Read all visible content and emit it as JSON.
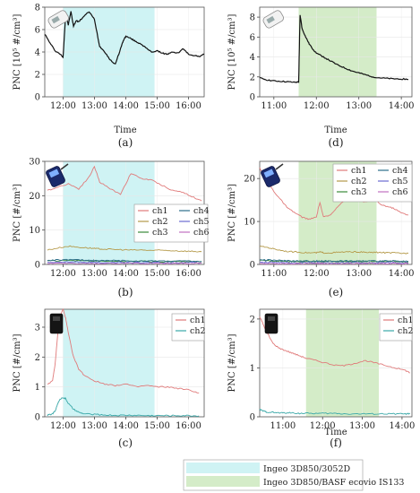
{
  "figure": {
    "legend": {
      "items": [
        {
          "label": "Ingeo 3D850/3052D",
          "color": "#cff3f4"
        },
        {
          "label": "Ingeo 3D850/BASF ecovio IS133",
          "color": "#d4ecc8"
        }
      ]
    }
  },
  "chart_data": [
    {
      "panel": "(a)",
      "type": "line",
      "ylabel": "PNC [10⁵ #/cm³]",
      "xlabel": "Time",
      "ylim": [
        0,
        8
      ],
      "yticks": [
        0,
        2,
        4,
        6,
        8
      ],
      "xlim": [
        "11:25",
        "16:30"
      ],
      "xticks": [
        "12:00",
        "13:00",
        "14:00",
        "15:00",
        "16:00"
      ],
      "shade": {
        "from": "12:00",
        "to": "14:55",
        "color": "#cff3f4"
      },
      "device_icon": "particle-counter-handheld-icon",
      "series": [
        {
          "name": "",
          "color": "#111111",
          "x": [
            "11:25",
            "11:35",
            "11:45",
            "11:55",
            "12:00",
            "12:05",
            "12:10",
            "12:15",
            "12:20",
            "12:25",
            "12:30",
            "12:40",
            "12:50",
            "13:00",
            "13:10",
            "13:20",
            "13:30",
            "13:40",
            "13:50",
            "13:55",
            "14:00",
            "14:10",
            "14:20",
            "14:30",
            "14:40",
            "14:50",
            "15:00",
            "15:10",
            "15:20",
            "15:30",
            "15:40",
            "15:50",
            "16:00",
            "16:10",
            "16:20",
            "16:30"
          ],
          "values": [
            5.6,
            4.8,
            4.1,
            3.8,
            3.5,
            7.5,
            6.4,
            7.6,
            6.3,
            6.8,
            6.7,
            7.2,
            7.6,
            6.9,
            4.5,
            4.0,
            3.3,
            2.9,
            4.3,
            5.0,
            5.4,
            5.2,
            4.9,
            4.7,
            4.3,
            4.0,
            4.1,
            3.9,
            3.8,
            4.0,
            3.9,
            4.3,
            3.8,
            3.7,
            3.6,
            3.8
          ]
        }
      ]
    },
    {
      "panel": "(d)",
      "type": "line",
      "ylabel": "PNC [10⁵ #/cm³]",
      "xlabel": "Time",
      "ylim": [
        0,
        9
      ],
      "yticks": [
        0,
        2,
        4,
        6,
        8
      ],
      "xlim": [
        "10:40",
        "14:15"
      ],
      "xticks": [
        "11:00",
        "12:00",
        "13:00",
        "14:00"
      ],
      "shade": {
        "from": "11:35",
        "to": "13:25",
        "color": "#d4ecc8"
      },
      "device_icon": "particle-counter-handheld-icon",
      "series": [
        {
          "name": "",
          "color": "#111111",
          "x": [
            "10:40",
            "10:50",
            "11:00",
            "11:10",
            "11:20",
            "11:30",
            "11:35",
            "11:37",
            "11:40",
            "11:45",
            "11:50",
            "11:55",
            "12:00",
            "12:10",
            "12:20",
            "12:30",
            "12:40",
            "12:50",
            "13:00",
            "13:10",
            "13:20",
            "13:30",
            "13:40",
            "13:50",
            "14:00",
            "14:10"
          ],
          "values": [
            1.9,
            1.7,
            1.6,
            1.55,
            1.5,
            1.45,
            1.5,
            8.2,
            6.8,
            6.0,
            5.3,
            4.8,
            4.4,
            4.0,
            3.6,
            3.2,
            2.9,
            2.6,
            2.4,
            2.2,
            2.0,
            1.9,
            1.85,
            1.8,
            1.8,
            1.75
          ]
        }
      ]
    },
    {
      "panel": "(b)",
      "type": "line",
      "ylabel": "PNC [#/cm³]",
      "xlabel": "",
      "ylim": [
        0,
        30
      ],
      "yticks": [
        0,
        10,
        20,
        30
      ],
      "xlim": [
        "11:25",
        "16:30"
      ],
      "xticks": [
        "12:00",
        "13:00",
        "14:00",
        "15:00",
        "16:00"
      ],
      "shade": {
        "from": "12:00",
        "to": "14:55",
        "color": "#cff3f4"
      },
      "device_icon": "nanoparticle-monitor-icon",
      "x": [
        "11:30",
        "11:50",
        "12:10",
        "12:30",
        "12:50",
        "13:00",
        "13:10",
        "13:30",
        "13:50",
        "14:10",
        "14:30",
        "14:50",
        "15:10",
        "15:30",
        "15:50",
        "16:10",
        "16:25"
      ],
      "series": [
        {
          "name": "ch1",
          "color": "#e07a7a",
          "values": [
            21.5,
            22.5,
            23.5,
            22.0,
            25.5,
            28.5,
            24.0,
            22.0,
            20.5,
            26.5,
            25.0,
            24.5,
            23.0,
            21.5,
            21.0,
            19.5,
            18.5
          ]
        },
        {
          "name": "ch2",
          "color": "#b59a4a",
          "values": [
            4.2,
            4.8,
            5.3,
            5.0,
            4.8,
            4.6,
            4.5,
            4.4,
            4.3,
            4.2,
            4.2,
            4.1,
            4.1,
            4.0,
            3.9,
            3.8,
            3.7
          ]
        },
        {
          "name": "ch3",
          "color": "#3a8a3a",
          "values": [
            1.0,
            1.1,
            1.2,
            1.1,
            1.0,
            1.0,
            1.0,
            0.9,
            0.9,
            0.9,
            0.9,
            0.8,
            0.8,
            0.8,
            0.8,
            0.8,
            0.8
          ]
        },
        {
          "name": "ch4",
          "color": "#2c6e8a",
          "values": [
            1.2,
            1.3,
            1.4,
            1.3,
            1.2,
            1.2,
            1.1,
            1.1,
            1.1,
            1.0,
            1.0,
            1.0,
            1.0,
            1.0,
            1.0,
            0.9,
            0.9
          ]
        },
        {
          "name": "ch5",
          "color": "#6a6ad0",
          "values": [
            0.6,
            0.6,
            0.7,
            0.7,
            0.6,
            0.6,
            0.6,
            0.6,
            0.6,
            0.5,
            0.5,
            0.5,
            0.5,
            0.5,
            0.5,
            0.5,
            0.5
          ]
        },
        {
          "name": "ch6",
          "color": "#c070c0",
          "values": [
            0.3,
            0.3,
            0.3,
            0.3,
            0.3,
            0.3,
            0.3,
            0.3,
            0.3,
            0.3,
            0.3,
            0.3,
            0.3,
            0.3,
            0.3,
            0.3,
            0.3
          ]
        }
      ]
    },
    {
      "panel": "(e)",
      "type": "line",
      "ylabel": "PNC [#/cm³]",
      "xlabel": "",
      "ylim": [
        0,
        24
      ],
      "yticks": [
        0,
        10,
        20
      ],
      "xlim": [
        "10:40",
        "14:15"
      ],
      "xticks": [
        "11:00",
        "12:00",
        "13:00",
        "14:00"
      ],
      "shade": {
        "from": "11:35",
        "to": "13:25",
        "color": "#d4ecc8"
      },
      "device_icon": "nanoparticle-monitor-icon",
      "x": [
        "10:40",
        "10:50",
        "11:00",
        "11:10",
        "11:20",
        "11:30",
        "11:40",
        "11:50",
        "12:00",
        "12:05",
        "12:10",
        "12:20",
        "12:30",
        "12:40",
        "12:50",
        "13:00",
        "13:10",
        "13:20",
        "13:30",
        "13:40",
        "13:50",
        "14:00",
        "14:10"
      ],
      "series": [
        {
          "name": "ch1",
          "color": "#e07a7a",
          "values": [
            22.5,
            19.5,
            17.0,
            15.0,
            13.0,
            12.0,
            11.0,
            10.5,
            11.0,
            14.5,
            11.0,
            11.5,
            13.5,
            15.0,
            15.5,
            15.0,
            14.5,
            15.5,
            14.0,
            13.5,
            13.0,
            12.0,
            11.5
          ]
        },
        {
          "name": "ch2",
          "color": "#b59a4a",
          "values": [
            4.2,
            4.0,
            3.6,
            3.3,
            3.0,
            2.9,
            2.8,
            2.7,
            2.7,
            2.9,
            2.7,
            2.7,
            2.8,
            2.9,
            2.9,
            2.9,
            2.8,
            2.8,
            2.8,
            2.7,
            2.7,
            2.6,
            2.6
          ]
        },
        {
          "name": "ch3",
          "color": "#3a8a3a",
          "values": [
            0.9,
            0.9,
            0.8,
            0.8,
            0.7,
            0.7,
            0.7,
            0.7,
            0.7,
            0.7,
            0.7,
            0.7,
            0.7,
            0.7,
            0.7,
            0.7,
            0.7,
            0.7,
            0.7,
            0.7,
            0.7,
            0.6,
            0.6
          ]
        },
        {
          "name": "ch4",
          "color": "#2c6e8a",
          "values": [
            1.1,
            1.0,
            1.0,
            0.9,
            0.9,
            0.8,
            0.8,
            0.8,
            0.8,
            0.8,
            0.8,
            0.8,
            0.8,
            0.8,
            0.8,
            0.8,
            0.8,
            0.8,
            0.8,
            0.8,
            0.8,
            0.7,
            0.7
          ]
        },
        {
          "name": "ch5",
          "color": "#6a6ad0",
          "values": [
            0.5,
            0.5,
            0.5,
            0.5,
            0.5,
            0.4,
            0.4,
            0.4,
            0.4,
            0.4,
            0.4,
            0.4,
            0.4,
            0.4,
            0.4,
            0.4,
            0.4,
            0.4,
            0.4,
            0.4,
            0.4,
            0.4,
            0.4
          ]
        },
        {
          "name": "ch6",
          "color": "#c070c0",
          "values": [
            0.2,
            0.2,
            0.2,
            0.2,
            0.2,
            0.2,
            0.2,
            0.2,
            0.2,
            0.2,
            0.2,
            0.2,
            0.2,
            0.2,
            0.2,
            0.2,
            0.2,
            0.2,
            0.2,
            0.2,
            0.2,
            0.2,
            0.2
          ]
        }
      ]
    },
    {
      "panel": "(c)",
      "type": "line",
      "ylabel": "PNC [#/cm³]",
      "xlabel": "",
      "ylim": [
        0,
        3.6
      ],
      "yticks": [
        0,
        1,
        2,
        3
      ],
      "xlim": [
        "11:25",
        "16:30"
      ],
      "xticks": [
        "12:00",
        "13:00",
        "14:00",
        "15:00",
        "16:00"
      ],
      "shade": {
        "from": "12:00",
        "to": "14:55",
        "color": "#cff3f4"
      },
      "device_icon": "black-sensor-device-icon",
      "x": [
        "11:30",
        "11:40",
        "11:45",
        "11:50",
        "11:55",
        "12:00",
        "12:05",
        "12:10",
        "12:20",
        "12:30",
        "12:40",
        "13:00",
        "13:20",
        "13:40",
        "14:00",
        "14:20",
        "14:40",
        "15:00",
        "15:20",
        "15:40",
        "16:00",
        "16:20"
      ],
      "series": [
        {
          "name": "ch1",
          "color": "#e07a7a",
          "values": [
            1.1,
            1.2,
            1.8,
            2.8,
            3.4,
            3.6,
            3.3,
            2.8,
            2.0,
            1.6,
            1.4,
            1.2,
            1.1,
            1.05,
            1.1,
            1.0,
            1.05,
            1.0,
            1.0,
            0.95,
            0.9,
            0.8
          ]
        },
        {
          "name": "ch2",
          "color": "#3aa8a8",
          "values": [
            0.05,
            0.1,
            0.2,
            0.45,
            0.6,
            0.65,
            0.6,
            0.45,
            0.25,
            0.15,
            0.1,
            0.08,
            0.06,
            0.05,
            0.05,
            0.05,
            0.04,
            0.04,
            0.04,
            0.04,
            0.04,
            0.03
          ]
        }
      ]
    },
    {
      "panel": "(f)",
      "type": "line",
      "ylabel": "PNC [#/cm³]",
      "xlabel": "Time",
      "ylim": [
        0,
        2.2
      ],
      "yticks": [
        0,
        1,
        2
      ],
      "xlim": [
        "10:25",
        "14:15"
      ],
      "xticks": [
        "11:00",
        "12:00",
        "13:00",
        "14:00"
      ],
      "shade": {
        "from": "11:35",
        "to": "13:25",
        "color": "#d4ecc8"
      },
      "device_icon": "black-sensor-device-icon",
      "x": [
        "10:25",
        "10:30",
        "10:35",
        "10:45",
        "10:55",
        "11:05",
        "11:15",
        "11:25",
        "11:35",
        "11:50",
        "12:05",
        "12:20",
        "12:35",
        "12:50",
        "13:05",
        "13:20",
        "13:35",
        "13:50",
        "14:05",
        "14:12"
      ],
      "series": [
        {
          "name": "ch1",
          "color": "#e07a7a",
          "values": [
            2.05,
            1.9,
            1.75,
            1.5,
            1.4,
            1.35,
            1.3,
            1.25,
            1.2,
            1.15,
            1.1,
            1.05,
            1.05,
            1.1,
            1.15,
            1.1,
            1.05,
            1.0,
            0.95,
            0.9
          ]
        },
        {
          "name": "ch2",
          "color": "#3aa8a8",
          "values": [
            0.15,
            0.12,
            0.1,
            0.09,
            0.08,
            0.08,
            0.08,
            0.07,
            0.07,
            0.07,
            0.07,
            0.07,
            0.06,
            0.06,
            0.06,
            0.06,
            0.06,
            0.06,
            0.06,
            0.06
          ]
        }
      ]
    }
  ]
}
